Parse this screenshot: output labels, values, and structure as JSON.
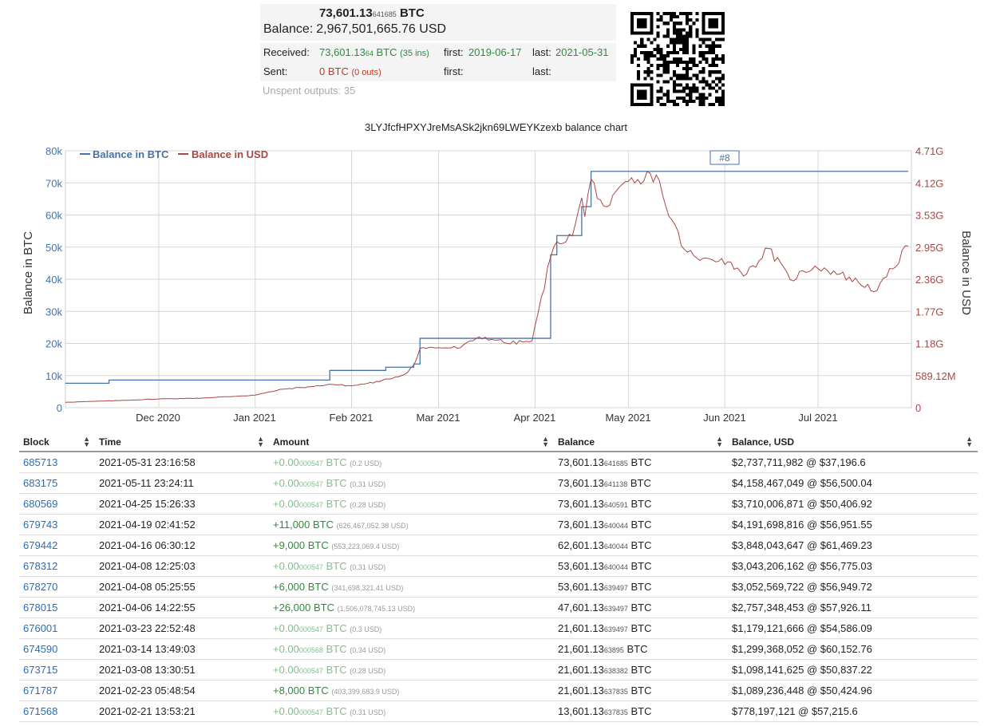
{
  "summary": {
    "balance_btc_main": "73,601.13",
    "balance_btc_small": "641685",
    "balance_btc_unit": "BTC",
    "balance_label": "Balance:",
    "balance_usd": "2,967,501,665.76 USD",
    "received_label": "Received:",
    "received_main": "73,601.13",
    "received_small": "64",
    "received_unit": "BTC",
    "received_ins": "(35 ins)",
    "first_label": "first:",
    "received_first": "2019-06-17",
    "last_label": "last:",
    "received_last": "2021-05-31",
    "sent_label": "Sent:",
    "sent_value": "0 BTC",
    "sent_outs": "(0 outs)",
    "sent_first": "",
    "sent_last": "",
    "unspent": "Unspent outputs: 35"
  },
  "chart_data": {
    "type": "line",
    "title": "3LYJfcfHPXYJreMsASk2jkn69LWEYKzexb balance chart",
    "ylabel": "Balance in BTC",
    "y2label": "Balance in USD",
    "x_ticks": [
      "Dec 2020",
      "Jan 2021",
      "Feb 2021",
      "Mar 2021",
      "Apr 2021",
      "May 2021",
      "Jun 2021",
      "Jul 2021"
    ],
    "y_ticks": [
      "0",
      "10k",
      "20k",
      "30k",
      "40k",
      "50k",
      "60k",
      "70k",
      "80k"
    ],
    "y2_ticks": [
      "0",
      "589.12M",
      "1.18G",
      "1.77G",
      "2.36G",
      "2.95G",
      "3.53G",
      "4.12G",
      "4.71G"
    ],
    "ylim": [
      0,
      80000
    ],
    "y2lim": [
      0,
      4710000000
    ],
    "legend": {
      "position": "top-left"
    },
    "flag_label": "#8",
    "grid": true,
    "colors": {
      "btc": "#4572a7",
      "usd": "#aa4643"
    },
    "series": [
      {
        "name": "Balance in BTC",
        "axis": "left",
        "step": true,
        "points": [
          [
            "2020-11-01",
            7601
          ],
          [
            "2020-11-15",
            8601
          ],
          [
            "2021-01-25",
            11601
          ],
          [
            "2021-02-12",
            12601
          ],
          [
            "2021-02-21",
            13601
          ],
          [
            "2021-02-23",
            21601
          ],
          [
            "2021-04-06",
            47601
          ],
          [
            "2021-04-08",
            53601
          ],
          [
            "2021-04-16",
            62601
          ],
          [
            "2021-04-19",
            73601
          ],
          [
            "2021-07-30",
            73601
          ]
        ]
      },
      {
        "name": "Balance in USD",
        "axis": "right",
        "points": [
          [
            "2020-11-01",
            100000000
          ],
          [
            "2020-11-10",
            115000000
          ],
          [
            "2020-11-20",
            135000000
          ],
          [
            "2020-12-01",
            160000000
          ],
          [
            "2020-12-15",
            175000000
          ],
          [
            "2021-01-01",
            230000000
          ],
          [
            "2021-01-10",
            340000000
          ],
          [
            "2021-01-20",
            390000000
          ],
          [
            "2021-01-25",
            430000000
          ],
          [
            "2021-02-01",
            400000000
          ],
          [
            "2021-02-10",
            480000000
          ],
          [
            "2021-02-18",
            610000000
          ],
          [
            "2021-02-21",
            778000000
          ],
          [
            "2021-02-23",
            1089000000
          ],
          [
            "2021-03-01",
            1100000000
          ],
          [
            "2021-03-08",
            1098000000
          ],
          [
            "2021-03-14",
            1299000000
          ],
          [
            "2021-03-20",
            1240000000
          ],
          [
            "2021-03-23",
            1179000000
          ],
          [
            "2021-03-31",
            1220000000
          ],
          [
            "2021-04-06",
            2757000000
          ],
          [
            "2021-04-08",
            3043000000
          ],
          [
            "2021-04-13",
            3150000000
          ],
          [
            "2021-04-16",
            3848000000
          ],
          [
            "2021-04-17",
            3500000000
          ],
          [
            "2021-04-19",
            4191000000
          ],
          [
            "2021-04-23",
            3700000000
          ],
          [
            "2021-04-25",
            3710000000
          ],
          [
            "2021-05-01",
            4150000000
          ],
          [
            "2021-05-05",
            4100000000
          ],
          [
            "2021-05-08",
            4300000000
          ],
          [
            "2021-05-11",
            4158000000
          ],
          [
            "2021-05-13",
            3700000000
          ],
          [
            "2021-05-19",
            2900000000
          ],
          [
            "2021-05-24",
            2700000000
          ],
          [
            "2021-05-31",
            2737000000
          ],
          [
            "2021-06-08",
            2450000000
          ],
          [
            "2021-06-15",
            2920000000
          ],
          [
            "2021-06-22",
            2350000000
          ],
          [
            "2021-06-30",
            2600000000
          ],
          [
            "2021-07-08",
            2450000000
          ],
          [
            "2021-07-20",
            2150000000
          ],
          [
            "2021-07-30",
            2967000000
          ]
        ]
      }
    ]
  },
  "table": {
    "headers": [
      "Block",
      "Time",
      "Amount",
      "Balance",
      "Balance, USD"
    ],
    "rows": [
      {
        "block": "685713",
        "time": "2021-05-31 23:16:58",
        "amt_main": "+0.00",
        "amt_small": "000547",
        "amt_unit": "BTC",
        "amt_usd": "(0.2 USD)",
        "bal_main": "73,601.13",
        "bal_small": "641685",
        "bal_unit": "BTC",
        "bal_usd": "$2,737,711,982 @ $37,196.6",
        "strong": false
      },
      {
        "block": "683175",
        "time": "2021-05-11 23:24:11",
        "amt_main": "+0.00",
        "amt_small": "000547",
        "amt_unit": "BTC",
        "amt_usd": "(0.31 USD)",
        "bal_main": "73,601.13",
        "bal_small": "641138",
        "bal_unit": "BTC",
        "bal_usd": "$4,158,467,049 @ $56,500.04",
        "strong": false
      },
      {
        "block": "680569",
        "time": "2021-04-25 15:26:33",
        "amt_main": "+0.00",
        "amt_small": "000547",
        "amt_unit": "BTC",
        "amt_usd": "(0.28 USD)",
        "bal_main": "73,601.13",
        "bal_small": "640591",
        "bal_unit": "BTC",
        "bal_usd": "$3,710,006,871 @ $50,406.92",
        "strong": false
      },
      {
        "block": "679743",
        "time": "2021-04-19 02:41:52",
        "amt_main": "+11,000",
        "amt_small": "",
        "amt_unit": "BTC",
        "amt_usd": "(626,467,052.38 USD)",
        "bal_main": "73,601.13",
        "bal_small": "640044",
        "bal_unit": "BTC",
        "bal_usd": "$4,191,698,816 @ $56,951.55",
        "strong": true
      },
      {
        "block": "679442",
        "time": "2021-04-16 06:30:12",
        "amt_main": "+9,000",
        "amt_small": "",
        "amt_unit": "BTC",
        "amt_usd": "(553,223,069.4 USD)",
        "bal_main": "62,601.13",
        "bal_small": "640044",
        "bal_unit": "BTC",
        "bal_usd": "$3,848,043,647 @ $61,469.23",
        "strong": true
      },
      {
        "block": "678312",
        "time": "2021-04-08 12:25:03",
        "amt_main": "+0.00",
        "amt_small": "000547",
        "amt_unit": "BTC",
        "amt_usd": "(0.31 USD)",
        "bal_main": "53,601.13",
        "bal_small": "640044",
        "bal_unit": "BTC",
        "bal_usd": "$3,043,206,162 @ $56,775.03",
        "strong": false
      },
      {
        "block": "678270",
        "time": "2021-04-08 05:25:55",
        "amt_main": "+6,000",
        "amt_small": "",
        "amt_unit": "BTC",
        "amt_usd": "(341,698,321.41 USD)",
        "bal_main": "53,601.13",
        "bal_small": "639497",
        "bal_unit": "BTC",
        "bal_usd": "$3,052,569,722 @ $56,949.72",
        "strong": true
      },
      {
        "block": "678015",
        "time": "2021-04-06 14:22:55",
        "amt_main": "+26,000",
        "amt_small": "",
        "amt_unit": "BTC",
        "amt_usd": "(1,506,078,745.13 USD)",
        "bal_main": "47,601.13",
        "bal_small": "639497",
        "bal_unit": "BTC",
        "bal_usd": "$2,757,348,453 @ $57,926.11",
        "strong": true
      },
      {
        "block": "676001",
        "time": "2021-03-23 22:52:48",
        "amt_main": "+0.00",
        "amt_small": "000547",
        "amt_unit": "BTC",
        "amt_usd": "(0.3 USD)",
        "bal_main": "21,601.13",
        "bal_small": "639497",
        "bal_unit": "BTC",
        "bal_usd": "$1,179,121,666 @ $54,586.09",
        "strong": false
      },
      {
        "block": "674590",
        "time": "2021-03-14 13:49:03",
        "amt_main": "+0.00",
        "amt_small": "000568",
        "amt_unit": "BTC",
        "amt_usd": "(0.34 USD)",
        "bal_main": "21,601.13",
        "bal_small": "63895",
        "bal_unit": "BTC",
        "bal_usd": "$1,299,368,052 @ $60,152.76",
        "strong": false
      },
      {
        "block": "673715",
        "time": "2021-03-08 13:30:51",
        "amt_main": "+0.00",
        "amt_small": "000547",
        "amt_unit": "BTC",
        "amt_usd": "(0.28 USD)",
        "bal_main": "21,601.13",
        "bal_small": "638382",
        "bal_unit": "BTC",
        "bal_usd": "$1,098,141,625 @ $50,837.22",
        "strong": false
      },
      {
        "block": "671787",
        "time": "2021-02-23 05:48:54",
        "amt_main": "+8,000",
        "amt_small": "",
        "amt_unit": "BTC",
        "amt_usd": "(403,399,683.9 USD)",
        "bal_main": "21,601.13",
        "bal_small": "637835",
        "bal_unit": "BTC",
        "bal_usd": "$1,089,236,448 @ $50,424.96",
        "strong": true
      },
      {
        "block": "671568",
        "time": "2021-02-21 13:53:21",
        "amt_main": "+0.00",
        "amt_small": "000547",
        "amt_unit": "BTC",
        "amt_usd": "(0.31 USD)",
        "bal_main": "13,601.13",
        "bal_small": "637835",
        "bal_unit": "BTC",
        "bal_usd": "$778,197,121 @ $57,215.6",
        "strong": false
      }
    ]
  }
}
